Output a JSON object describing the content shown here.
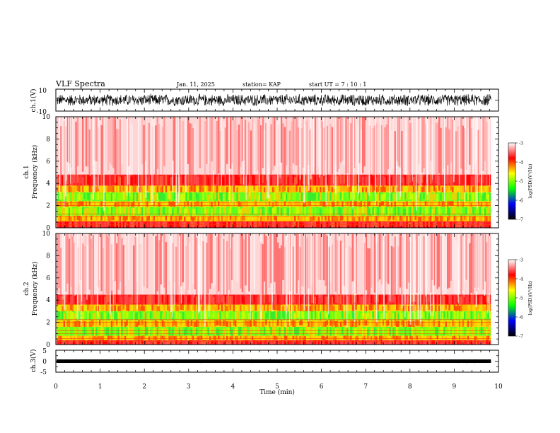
{
  "header": {
    "title": "VLF Spectra",
    "date": "Jan. 11, 2025",
    "station": "station= KAP",
    "start": "start  UT =   7 : 10 : 1"
  },
  "chart_data": [
    {
      "type": "line",
      "name": "ch1-waveform",
      "ylabel": "ch.1(V)",
      "ylim": [
        -10,
        10
      ],
      "yticks": [
        "10",
        "-10"
      ],
      "xlim": [
        0,
        10
      ],
      "x_extent": [
        0,
        9.83
      ],
      "amplitude_range": [
        -6,
        6
      ],
      "color": "#000000"
    },
    {
      "type": "heatmap",
      "name": "ch1-spectrogram",
      "ylabel": "ch.1\nFrequency  (kHz)",
      "ylim": [
        0,
        10
      ],
      "yticks": [
        "0",
        "2",
        "4",
        "6",
        "8",
        "10"
      ],
      "xlim": [
        0,
        10
      ],
      "x_extent": [
        0,
        9.83
      ],
      "bands": [
        {
          "from": 0.0,
          "to": 0.6,
          "level": "red"
        },
        {
          "from": 0.6,
          "to": 1.1,
          "level": "yellow"
        },
        {
          "from": 1.1,
          "to": 1.9,
          "level": "green"
        },
        {
          "from": 1.9,
          "to": 2.4,
          "level": "yellow"
        },
        {
          "from": 2.4,
          "to": 3.2,
          "level": "green"
        },
        {
          "from": 3.2,
          "to": 3.8,
          "level": "yellow"
        },
        {
          "from": 3.8,
          "to": 4.8,
          "level": "red"
        },
        {
          "from": 4.8,
          "to": 10.0,
          "level": "light-red"
        }
      ],
      "colorbar": {
        "label": "log(PSD)(V²/Hz)",
        "range": [
          -7,
          -3
        ],
        "ticks": [
          "-3",
          "-4",
          "-5",
          "-6",
          "-7"
        ],
        "colors": [
          "#ffffff",
          "#ff0000",
          "#ffff00",
          "#00ff00",
          "#0000ff",
          "#000000"
        ]
      }
    },
    {
      "type": "heatmap",
      "name": "ch2-spectrogram",
      "ylabel": "ch.2\nFrequency  (kHz)",
      "ylim": [
        0,
        10
      ],
      "yticks": [
        "0",
        "2",
        "4",
        "6",
        "8",
        "10"
      ],
      "xlim": [
        0,
        10
      ],
      "x_extent": [
        0,
        9.83
      ],
      "bands": [
        {
          "from": 0.0,
          "to": 0.4,
          "level": "red"
        },
        {
          "from": 0.4,
          "to": 0.8,
          "level": "yellow"
        },
        {
          "from": 0.8,
          "to": 1.6,
          "level": "green"
        },
        {
          "from": 1.6,
          "to": 2.2,
          "level": "yellow"
        },
        {
          "from": 2.2,
          "to": 3.0,
          "level": "green"
        },
        {
          "from": 3.0,
          "to": 3.6,
          "level": "yellow"
        },
        {
          "from": 3.6,
          "to": 4.5,
          "level": "red"
        },
        {
          "from": 4.5,
          "to": 10.0,
          "level": "light-red"
        }
      ],
      "colorbar": {
        "label": "log(PSD)(V²/Hz)",
        "range": [
          -7,
          -3
        ],
        "ticks": [
          "-3",
          "-4",
          "-5",
          "-6",
          "-7"
        ],
        "colors": [
          "#ffffff",
          "#ff0000",
          "#ffff00",
          "#00ff00",
          "#0000ff",
          "#000000"
        ]
      }
    },
    {
      "type": "line",
      "name": "ch3-waveform",
      "ylabel": "ch.3(V)",
      "ylim": [
        -5,
        5
      ],
      "yticks": [
        "5",
        "0",
        "-5"
      ],
      "xlim": [
        0,
        10
      ],
      "x_extent": [
        0,
        9.83
      ],
      "amplitude_range": [
        -0.7,
        0.7
      ],
      "color": "#000000",
      "xlabel": "Time  (min)",
      "xticks": [
        "0",
        "1",
        "2",
        "3",
        "4",
        "5",
        "6",
        "7",
        "8",
        "9",
        "10"
      ]
    }
  ]
}
